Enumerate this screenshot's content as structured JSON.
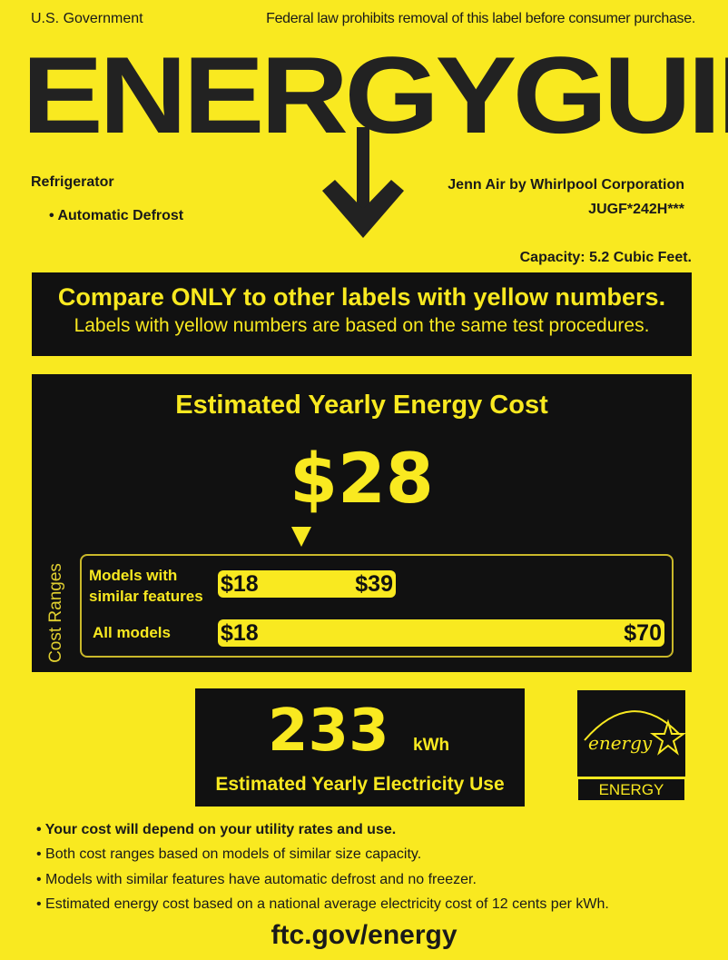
{
  "header": {
    "left": "U.S. Government",
    "right": "Federal law prohibits removal of this label before consumer purchase."
  },
  "title": "ENERGYGUIDE",
  "product": {
    "type": "Refrigerator",
    "feature": "Automatic Defrost",
    "manufacturer": "Jenn Air by Whirlpool Corporation",
    "model": "JUGF*242H***",
    "capacity": "Capacity: 5.2 Cubic Feet."
  },
  "compare": {
    "heading": "Compare ONLY to other labels with yellow numbers.",
    "subheading": "Labels with yellow numbers are based on the same test procedures."
  },
  "cost": {
    "title": "Estimated Yearly Energy Cost",
    "value": "$28",
    "ranges_label": "Cost Ranges",
    "similar": {
      "label1": "Models with",
      "label2": "similar features",
      "min": "$18",
      "max": "$39"
    },
    "all": {
      "label": "All models",
      "min": "$18",
      "max": "$70"
    }
  },
  "electricity": {
    "value": "233",
    "unit": "kWh",
    "label": "Estimated Yearly Electricity Use"
  },
  "energy_star": {
    "script": "energy",
    "label": "ENERGY STAR"
  },
  "notes": [
    "Your cost will depend on your utility rates and use.",
    "Both cost ranges based on models of similar size capacity.",
    "Models with similar features have automatic defrost and no freezer.",
    "Estimated energy cost based on a national average electricity cost of 12 cents per kWh."
  ],
  "footer": "ftc.gov/energy",
  "colors": {
    "label_yellow": "#f9e920",
    "black": "#111111"
  }
}
